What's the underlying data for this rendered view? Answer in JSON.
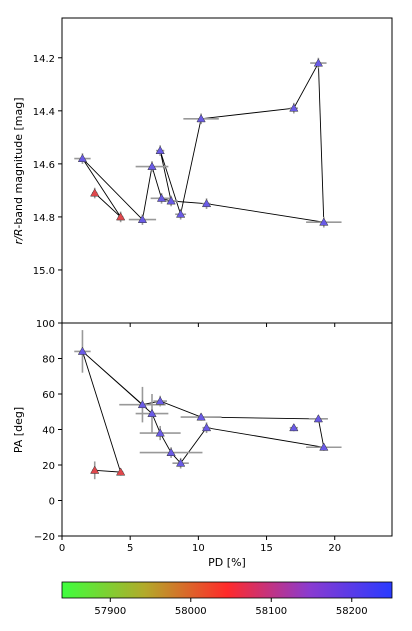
{
  "chart_data": [
    {
      "type": "scatter",
      "ylabel": "r/R-band magnitude [mag]",
      "ylabel_italic": "r/R",
      "ylabel_rest": "-band magnitude [mag]",
      "ylim": [
        15.2,
        14.05
      ],
      "y_inverted": true,
      "yticks": [
        "14.2",
        "14.4",
        "14.6",
        "14.8",
        "15.0"
      ],
      "ytick_values": [
        14.2,
        14.4,
        14.6,
        14.8,
        15.0
      ],
      "points": [
        {
          "pd": 1.5,
          "mag": 14.58,
          "pd_err": 0.6,
          "mag_err": 0.02,
          "mjd": 58200,
          "marker": "triangle",
          "color": "#6a5be6"
        },
        {
          "pd": 6.6,
          "mag": 14.61,
          "pd_err": 1.2,
          "mag_err": 0.02,
          "mjd": 58190,
          "marker": "triangle",
          "color": "#6a5be6"
        },
        {
          "pd": 7.2,
          "mag": 14.55,
          "pd_err": 0.3,
          "mag_err": 0.02,
          "mjd": 58195,
          "marker": "triangle",
          "color": "#6a5be6"
        },
        {
          "pd": 7.3,
          "mag": 14.73,
          "pd_err": 0.8,
          "mag_err": 0.02,
          "mjd": 58190,
          "marker": "triangle",
          "color": "#6a5be6"
        },
        {
          "pd": 8.0,
          "mag": 14.74,
          "pd_err": 0.5,
          "mag_err": 0.02,
          "mjd": 58195,
          "marker": "triangle",
          "color": "#6a5be6"
        },
        {
          "pd": 8.7,
          "mag": 14.79,
          "pd_err": 0.4,
          "mag_err": 0.02,
          "mjd": 58195,
          "marker": "triangle",
          "color": "#6a5be6"
        },
        {
          "pd": 10.2,
          "mag": 14.43,
          "pd_err": 1.3,
          "mag_err": 0.02,
          "mjd": 58195,
          "marker": "triangle",
          "color": "#6a5be6"
        },
        {
          "pd": 10.6,
          "mag": 14.75,
          "pd_err": 0.3,
          "mag_err": 0.02,
          "mjd": 58195,
          "marker": "triangle",
          "color": "#6a5be6"
        },
        {
          "pd": 17.0,
          "mag": 14.39,
          "pd_err": 0.3,
          "mag_err": 0.02,
          "mjd": 58200,
          "marker": "triangle",
          "color": "#6a5be6"
        },
        {
          "pd": 18.8,
          "mag": 14.22,
          "pd_err": 0.6,
          "mag_err": 0.02,
          "mjd": 58200,
          "marker": "triangle",
          "color": "#6a5be6"
        },
        {
          "pd": 19.2,
          "mag": 14.82,
          "pd_err": 1.3,
          "mag_err": 0.02,
          "mjd": 58200,
          "marker": "triangle",
          "color": "#6a5be6"
        },
        {
          "pd": 5.9,
          "mag": 14.81,
          "pd_err": 1.0,
          "mag_err": 0.02,
          "mjd": 58200,
          "marker": "triangle",
          "color": "#6a5be6"
        },
        {
          "pd": 2.4,
          "mag": 14.71,
          "pd_err": 0.2,
          "mag_err": 0.02,
          "mjd": 58080,
          "marker": "triangle",
          "color": "#e0484d"
        },
        {
          "pd": 4.3,
          "mag": 14.8,
          "pd_err": 0.2,
          "mag_err": 0.02,
          "mjd": 58080,
          "marker": "triangle",
          "color": "#e0484d"
        }
      ],
      "connecting_path": [
        [
          2.4,
          14.71
        ],
        [
          4.3,
          14.8
        ],
        [
          1.5,
          14.58
        ],
        [
          5.9,
          14.81
        ],
        [
          6.6,
          14.61
        ],
        [
          7.3,
          14.73
        ],
        [
          8.0,
          14.74
        ],
        [
          7.2,
          14.55
        ],
        [
          8.7,
          14.79
        ],
        [
          10.2,
          14.43
        ],
        [
          17.0,
          14.39
        ],
        [
          18.8,
          14.22
        ],
        [
          19.2,
          14.82
        ],
        [
          10.6,
          14.75
        ],
        [
          8.0,
          14.74
        ]
      ]
    },
    {
      "type": "scatter",
      "xlabel": "PD [%]",
      "ylabel": "PA [deg]",
      "xlim": [
        0,
        24.2
      ],
      "ylim": [
        -20,
        100
      ],
      "xticks": [
        "0",
        "5",
        "10",
        "15",
        "20"
      ],
      "xtick_values": [
        0,
        5,
        10,
        15,
        20
      ],
      "yticks": [
        "−20",
        "0",
        "20",
        "40",
        "60",
        "80",
        "100"
      ],
      "ytick_values": [
        -20,
        0,
        20,
        40,
        60,
        80,
        100
      ],
      "points": [
        {
          "pd": 1.5,
          "pa": 84,
          "pd_err": 0.6,
          "pa_err": 12,
          "mjd": 58200,
          "color": "#6a5be6"
        },
        {
          "pd": 5.9,
          "pa": 54,
          "pd_err": 1.7,
          "pa_err": 10,
          "mjd": 58200,
          "color": "#6a5be6"
        },
        {
          "pd": 6.6,
          "pa": 49,
          "pd_err": 1.2,
          "pa_err": 11,
          "mjd": 58190,
          "color": "#6a5be6"
        },
        {
          "pd": 7.2,
          "pa": 56,
          "pd_err": 0.5,
          "pa_err": 3,
          "mjd": 58195,
          "color": "#6a5be6"
        },
        {
          "pd": 7.2,
          "pa": 38,
          "pd_err": 1.5,
          "pa_err": 4,
          "mjd": 58195,
          "color": "#6a5be6"
        },
        {
          "pd": 8.0,
          "pa": 27,
          "pd_err": 2.3,
          "pa_err": 3,
          "mjd": 58195,
          "color": "#6a5be6"
        },
        {
          "pd": 8.7,
          "pa": 21,
          "pd_err": 0.6,
          "pa_err": 3,
          "mjd": 58195,
          "color": "#6a5be6"
        },
        {
          "pd": 10.2,
          "pa": 47,
          "pd_err": 1.5,
          "pa_err": 2,
          "mjd": 58195,
          "color": "#6a5be6"
        },
        {
          "pd": 10.6,
          "pa": 41,
          "pd_err": 0.3,
          "pa_err": 3,
          "mjd": 58195,
          "color": "#6a5be6"
        },
        {
          "pd": 17.0,
          "pa": 41,
          "pd_err": 0.3,
          "pa_err": 2,
          "mjd": 58200,
          "color": "#6a5be6"
        },
        {
          "pd": 18.8,
          "pa": 46,
          "pd_err": 0.7,
          "pa_err": 2,
          "mjd": 58200,
          "color": "#6a5be6"
        },
        {
          "pd": 19.2,
          "pa": 30,
          "pd_err": 1.3,
          "pa_err": 2,
          "mjd": 58200,
          "color": "#6a5be6"
        },
        {
          "pd": 2.4,
          "pa": 17,
          "pd_err": 0.2,
          "pa_err": 5,
          "mjd": 58080,
          "color": "#e0484d"
        },
        {
          "pd": 4.3,
          "pa": 16,
          "pd_err": 0.2,
          "pa_err": 2,
          "mjd": 58080,
          "color": "#e0484d"
        }
      ],
      "connecting_path": [
        [
          2.4,
          17
        ],
        [
          4.3,
          16
        ],
        [
          1.5,
          84
        ],
        [
          5.9,
          54
        ],
        [
          7.2,
          56
        ],
        [
          10.2,
          47
        ],
        [
          18.8,
          46
        ],
        [
          19.2,
          30
        ],
        [
          10.6,
          41
        ],
        [
          8.7,
          21
        ],
        [
          8.0,
          27
        ],
        [
          7.2,
          38
        ],
        [
          6.6,
          49
        ],
        [
          1.5,
          84
        ]
      ]
    }
  ],
  "colorbar": {
    "ticks": [
      "57900",
      "58000",
      "58100",
      "58200"
    ],
    "tick_values": [
      57900,
      58000,
      58100,
      58200
    ],
    "range": [
      57840,
      58250
    ],
    "colors": [
      "#3dff3d",
      "#b2aa2a",
      "#ff2a2a",
      "#8a3bd0",
      "#2a3bff"
    ]
  }
}
